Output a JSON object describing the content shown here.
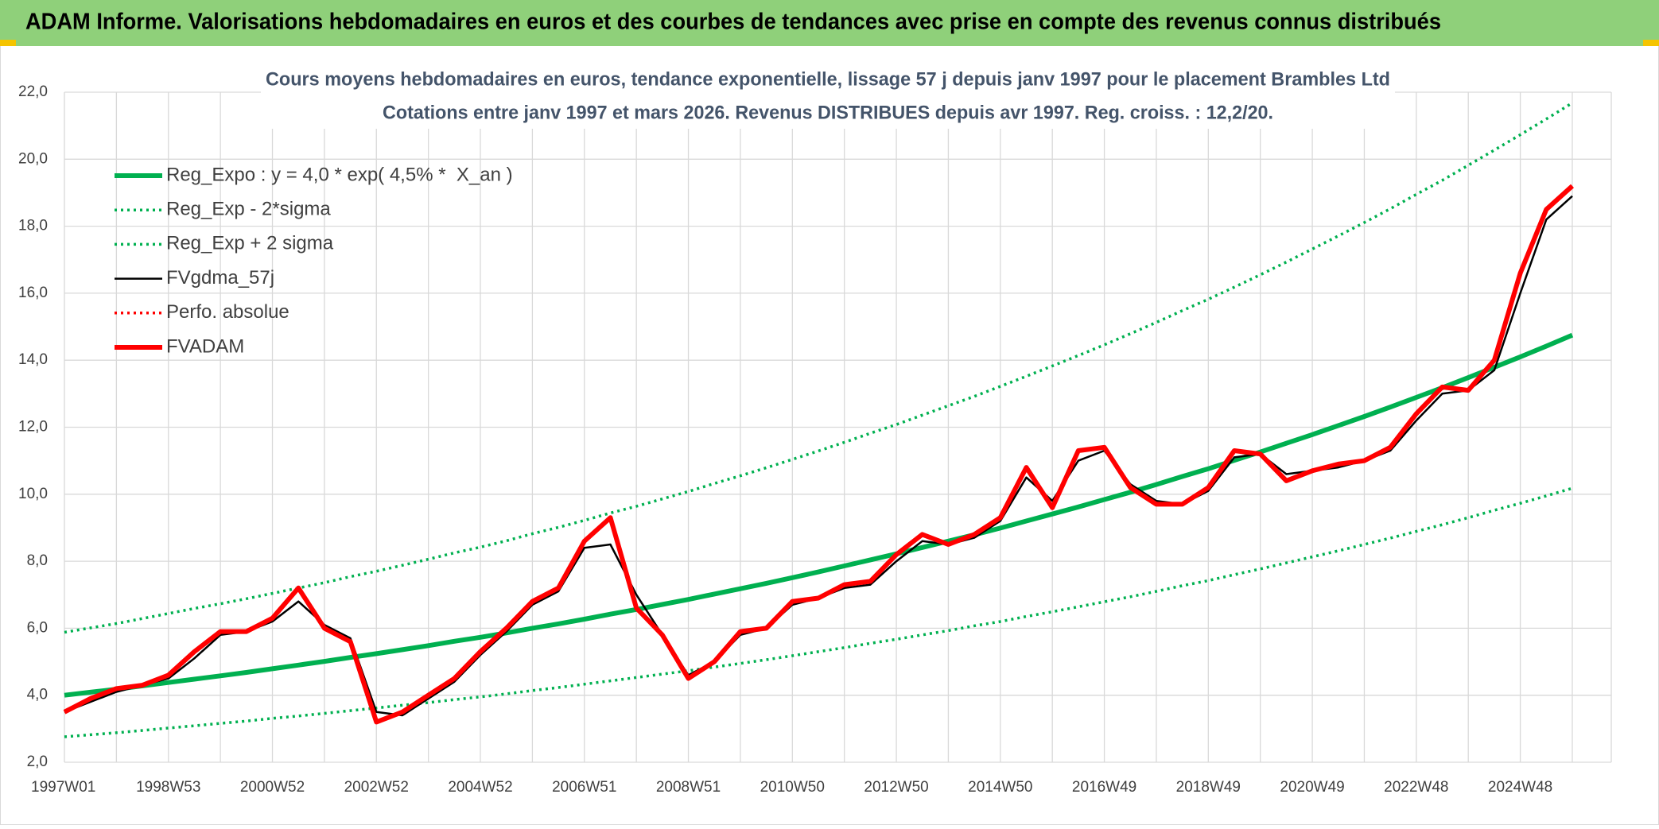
{
  "header": {
    "title": "ADAM Informe. Valorisations hebdomadaires en euros et des courbes de tendances avec prise en compte des revenus connus distribués"
  },
  "chart_data": {
    "type": "line",
    "title": "Cours moyens hebdomadaires en euros, tendance exponentielle, lissage 57 j depuis janv 1997 pour le placement Brambles Ltd",
    "subtitle": "Cotations entre janv 1997 et mars 2026. Revenus DISTRIBUES depuis avr 1997. Reg. croiss. : 12,2/20.",
    "categories": [
      "1997W01",
      null,
      null,
      null,
      "1998W53",
      null,
      null,
      null,
      "2000W52",
      null,
      null,
      null,
      "2002W52",
      null,
      null,
      null,
      "2004W52",
      null,
      null,
      null,
      "2006W51",
      null,
      null,
      null,
      "2008W51",
      null,
      null,
      null,
      "2010W50",
      null,
      null,
      null,
      "2012W50",
      null,
      null,
      null,
      "2014W50",
      null,
      null,
      null,
      "2016W49",
      null,
      null,
      null,
      "2018W49",
      null,
      null,
      null,
      "2020W49",
      null,
      null,
      null,
      "2022W48",
      null,
      null,
      null,
      "2024W48",
      null,
      null
    ],
    "ylim": [
      2,
      22
    ],
    "yticks": [
      {
        "value": 2,
        "label": "2,0"
      },
      {
        "value": 4,
        "label": "4,0"
      },
      {
        "value": 6,
        "label": "6,0"
      },
      {
        "value": 8,
        "label": "8,0"
      },
      {
        "value": 10,
        "label": "10,0"
      },
      {
        "value": 12,
        "label": "12,0"
      },
      {
        "value": 14,
        "label": "14,0"
      },
      {
        "value": 16,
        "label": "16,0"
      },
      {
        "value": 18,
        "label": "18,0"
      },
      {
        "value": 20,
        "label": "20,0"
      },
      {
        "value": 22,
        "label": "22,0"
      }
    ],
    "grid": true,
    "legend": "upper left",
    "series": [
      {
        "name": "Reg_Expo : y = 4,0 * exp( 4,5% *  X_an )",
        "color": "#00b050",
        "line_style": "thick",
        "values": [
          4.0,
          4.09,
          4.18,
          4.28,
          4.38,
          4.48,
          4.58,
          4.68,
          4.79,
          4.9,
          5.01,
          5.13,
          5.24,
          5.36,
          5.48,
          5.61,
          5.73,
          5.86,
          6.0,
          6.13,
          6.27,
          6.42,
          6.56,
          6.71,
          6.86,
          7.02,
          7.18,
          7.34,
          7.51,
          7.68,
          7.86,
          8.04,
          8.22,
          8.41,
          8.6,
          8.79,
          8.99,
          9.2,
          9.41,
          9.62,
          9.84,
          10.06,
          10.29,
          10.53,
          10.76,
          11.01,
          11.26,
          11.52,
          11.78,
          12.05,
          12.32,
          12.6,
          12.89,
          13.18,
          13.48,
          13.79,
          14.1,
          14.42,
          14.75
        ]
      },
      {
        "name": "Reg_Exp - 2*sigma",
        "color": "#00b050",
        "line_style": "dotted",
        "values": [
          2.76,
          2.82,
          2.88,
          2.95,
          3.02,
          3.09,
          3.16,
          3.23,
          3.31,
          3.38,
          3.46,
          3.54,
          3.62,
          3.7,
          3.78,
          3.87,
          3.95,
          4.04,
          4.14,
          4.23,
          4.33,
          4.43,
          4.53,
          4.63,
          4.73,
          4.84,
          4.95,
          5.06,
          5.18,
          5.3,
          5.42,
          5.55,
          5.67,
          5.8,
          5.93,
          6.07,
          6.2,
          6.35,
          6.49,
          6.64,
          6.79,
          6.94,
          7.1,
          7.27,
          7.42,
          7.6,
          7.77,
          7.95,
          8.13,
          8.31,
          8.5,
          8.69,
          8.89,
          9.09,
          9.3,
          9.52,
          9.73,
          9.95,
          10.18
        ]
      },
      {
        "name": "Reg_Exp + 2 sigma",
        "color": "#00b050",
        "line_style": "dotted",
        "values": [
          5.88,
          6.01,
          6.14,
          6.29,
          6.44,
          6.59,
          6.73,
          6.88,
          7.04,
          7.2,
          7.36,
          7.54,
          7.7,
          7.88,
          8.06,
          8.25,
          8.42,
          8.61,
          8.82,
          9.01,
          9.22,
          9.44,
          9.64,
          9.86,
          10.08,
          10.32,
          10.55,
          10.79,
          11.04,
          11.29,
          11.55,
          11.82,
          12.08,
          12.36,
          12.64,
          12.92,
          13.22,
          13.52,
          13.83,
          14.14,
          14.46,
          14.79,
          15.13,
          15.48,
          15.82,
          16.18,
          16.55,
          16.93,
          17.32,
          17.71,
          18.11,
          18.52,
          18.95,
          19.37,
          19.82,
          20.27,
          20.73,
          21.2,
          21.68
        ]
      },
      {
        "name": "FVgdma_57j",
        "color": "#000000",
        "line_style": "thin",
        "values": [
          3.5,
          3.8,
          4.1,
          4.3,
          4.5,
          5.1,
          5.8,
          5.9,
          6.2,
          6.8,
          6.1,
          5.7,
          3.5,
          3.4,
          3.9,
          4.4,
          5.2,
          5.9,
          6.7,
          7.1,
          8.4,
          8.5,
          7.0,
          5.8,
          4.6,
          5.0,
          5.8,
          6.0,
          6.7,
          6.9,
          7.2,
          7.3,
          8.0,
          8.6,
          8.5,
          8.7,
          9.2,
          10.5,
          9.8,
          11.0,
          11.3,
          10.3,
          9.8,
          9.7,
          10.1,
          11.1,
          11.2,
          10.6,
          10.7,
          10.8,
          11.0,
          11.3,
          12.2,
          13.0,
          13.1,
          13.7,
          16.0,
          18.2,
          18.9
        ]
      },
      {
        "name": "Perfo. absolue",
        "color": "#ff0000",
        "line_style": "dotted",
        "values": [
          3.5,
          3.9,
          4.2,
          4.3,
          4.6,
          5.3,
          5.9,
          5.9,
          6.3,
          7.2,
          6.0,
          5.6,
          3.2,
          3.5,
          4.0,
          4.5,
          5.3,
          6.0,
          6.8,
          7.2,
          8.6,
          9.3,
          6.6,
          5.8,
          4.5,
          5.0,
          5.9,
          6.0,
          6.8,
          6.9,
          7.3,
          7.4,
          8.2,
          8.8,
          8.5,
          8.8,
          9.3,
          10.8,
          9.6,
          11.3,
          11.4,
          10.2,
          9.7,
          9.7,
          10.2,
          11.3,
          11.2,
          10.4,
          10.7,
          10.9,
          11.0,
          11.4,
          12.4,
          13.2,
          13.1,
          14.0,
          16.6,
          18.5,
          19.2
        ]
      },
      {
        "name": "FVADAM",
        "color": "#ff0000",
        "line_style": "thick",
        "values": [
          3.5,
          3.9,
          4.2,
          4.3,
          4.6,
          5.3,
          5.9,
          5.9,
          6.3,
          7.2,
          6.0,
          5.6,
          3.2,
          3.5,
          4.0,
          4.5,
          5.3,
          6.0,
          6.8,
          7.2,
          8.6,
          9.3,
          6.6,
          5.8,
          4.5,
          5.0,
          5.9,
          6.0,
          6.8,
          6.9,
          7.3,
          7.4,
          8.2,
          8.8,
          8.5,
          8.8,
          9.3,
          10.8,
          9.6,
          11.3,
          11.4,
          10.2,
          9.7,
          9.7,
          10.2,
          11.3,
          11.2,
          10.4,
          10.7,
          10.9,
          11.0,
          11.4,
          12.4,
          13.2,
          13.1,
          14.0,
          16.6,
          18.5,
          19.2
        ]
      }
    ]
  }
}
